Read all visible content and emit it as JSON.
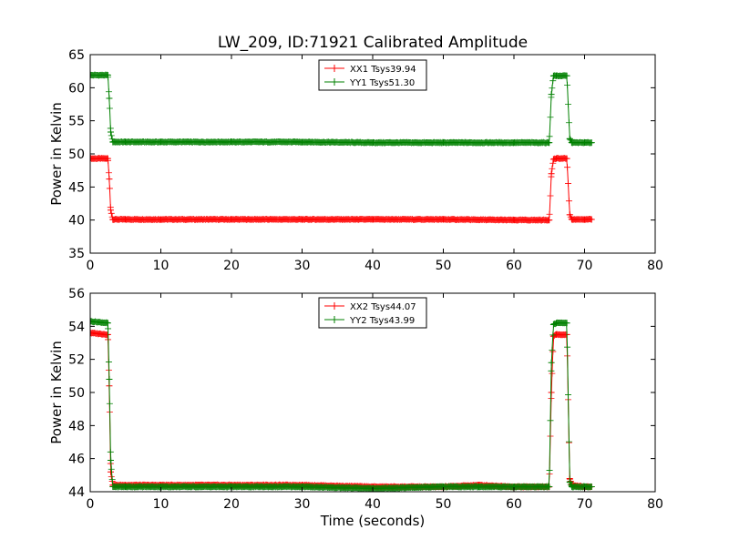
{
  "figure": {
    "title": "LW_209, ID:71921 Calibrated Amplitude"
  },
  "chart_data": [
    {
      "type": "line",
      "title": "LW_209, ID:71921 Calibrated Amplitude",
      "xlabel": "",
      "ylabel": "Power in Kelvin",
      "xlim": [
        0,
        80
      ],
      "ylim": [
        35,
        65
      ],
      "xticks": [
        "0",
        "10",
        "20",
        "30",
        "40",
        "50",
        "60",
        "70",
        "80"
      ],
      "yticks": [
        "35",
        "40",
        "45",
        "50",
        "55",
        "60",
        "65"
      ],
      "grid": false,
      "legend_position": "top-center",
      "series": [
        {
          "name": "XX1 Tsys39.94",
          "color": "#ff0000",
          "marker": "plus",
          "x": [
            0,
            2.5,
            2.7,
            2.9,
            3.2,
            5,
            10,
            20,
            30,
            40,
            50,
            60,
            65,
            65.3,
            65.6,
            66,
            67.5,
            67.9,
            68.2,
            70,
            71
          ],
          "y": [
            49.3,
            49.3,
            46.2,
            41.5,
            40.1,
            40.1,
            40.1,
            40.1,
            40.1,
            40.1,
            40.1,
            40.0,
            40.0,
            47.0,
            49.2,
            49.3,
            49.3,
            40.8,
            40.1,
            40.1,
            40.1
          ]
        },
        {
          "name": "YY1 Tsys51.30",
          "color": "#008000",
          "marker": "plus",
          "x": [
            0,
            2.5,
            2.7,
            2.9,
            3.2,
            5,
            10,
            20,
            30,
            40,
            50,
            60,
            65,
            65.3,
            65.6,
            66,
            67.5,
            67.9,
            68.2,
            70,
            71
          ],
          "y": [
            61.9,
            61.9,
            58.4,
            53.3,
            51.8,
            51.8,
            51.8,
            51.8,
            51.8,
            51.7,
            51.7,
            51.7,
            51.7,
            59.0,
            61.8,
            61.8,
            61.8,
            52.3,
            51.7,
            51.7,
            51.7
          ]
        }
      ]
    },
    {
      "type": "line",
      "title": "",
      "xlabel": "Time (seconds)",
      "ylabel": "Power in Kelvin",
      "xlim": [
        0,
        80
      ],
      "ylim": [
        44,
        56
      ],
      "xticks": [
        "0",
        "10",
        "20",
        "30",
        "40",
        "50",
        "60",
        "70",
        "80"
      ],
      "yticks": [
        "44",
        "46",
        "48",
        "50",
        "52",
        "54",
        "56"
      ],
      "grid": false,
      "legend_position": "top-center",
      "series": [
        {
          "name": "XX2 Tsys44.07",
          "color": "#ff0000",
          "marker": "plus",
          "x": [
            0,
            2.5,
            2.7,
            2.9,
            3.2,
            5,
            10,
            20,
            30,
            40,
            50,
            55,
            60,
            65,
            65.3,
            65.6,
            66,
            67.5,
            67.9,
            68.2,
            70,
            71
          ],
          "y": [
            53.6,
            53.5,
            50.4,
            45.2,
            44.4,
            44.4,
            44.4,
            44.4,
            44.4,
            44.3,
            44.3,
            44.4,
            44.3,
            44.3,
            50.0,
            53.4,
            53.5,
            53.5,
            44.8,
            44.4,
            44.3,
            44.3
          ]
        },
        {
          "name": "YY2 Tsys43.99",
          "color": "#008000",
          "marker": "plus",
          "x": [
            0,
            2.5,
            2.7,
            2.9,
            3.2,
            5,
            10,
            20,
            30,
            40,
            50,
            55,
            60,
            65,
            65.3,
            65.6,
            66,
            67.5,
            67.9,
            68.2,
            70,
            71
          ],
          "y": [
            54.3,
            54.2,
            50.8,
            45.9,
            44.3,
            44.3,
            44.3,
            44.3,
            44.3,
            44.2,
            44.3,
            44.3,
            44.3,
            44.3,
            51.8,
            54.1,
            54.2,
            54.2,
            44.6,
            44.3,
            44.3,
            44.3
          ]
        }
      ]
    }
  ]
}
